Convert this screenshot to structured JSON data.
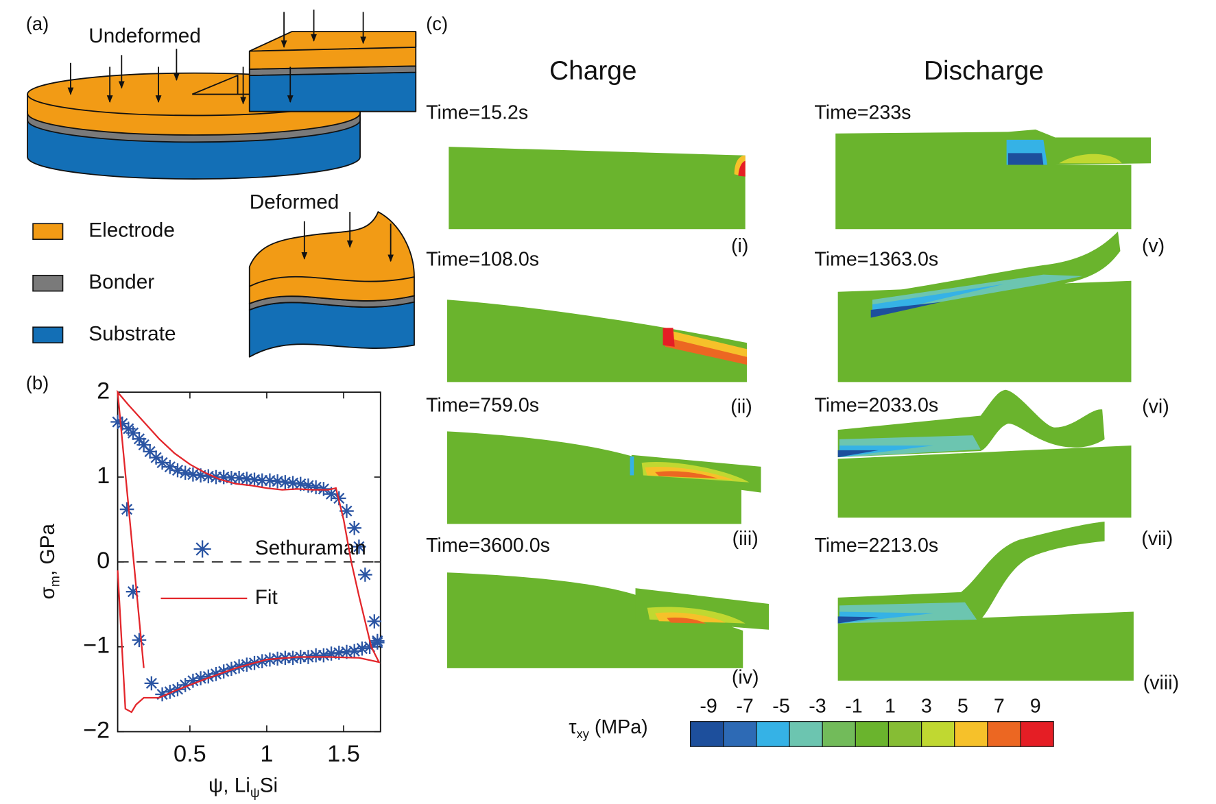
{
  "panel_a": {
    "label": "(a)",
    "undeformed": "Undeformed",
    "deformed": "Deformed",
    "legend": [
      {
        "name": "Electrode",
        "color": "#f29b15"
      },
      {
        "name": "Bonder",
        "color": "#7a7a7a"
      },
      {
        "name": "Substrate",
        "color": "#136fb6"
      }
    ]
  },
  "chart_data": {
    "type": "scatter",
    "label": "(b)",
    "ylabel": {
      "symbol": "σ",
      "sub": "m",
      "rest": ", GPa"
    },
    "xlabel": {
      "symbol": "ψ, Li",
      "sub": "ψ",
      "rest": "Si"
    },
    "xlim": [
      0.03,
      1.74
    ],
    "ylim": [
      -2,
      2
    ],
    "xticks": [
      0.5,
      1,
      1.5
    ],
    "yticks": [
      {
        "value": -2,
        "label": "−2"
      },
      {
        "value": -1,
        "label": "−1"
      },
      0,
      1,
      2
    ],
    "hline": 0,
    "series": [
      {
        "name": "Sethuraman",
        "color": "#2b55a3",
        "marker": "*",
        "x": [
          0.03,
          0.06,
          0.1,
          0.13,
          0.17,
          0.2,
          0.24,
          0.28,
          0.32,
          0.37,
          0.42,
          0.47,
          0.52,
          0.57,
          0.62,
          0.67,
          0.72,
          0.77,
          0.82,
          0.87,
          0.92,
          0.97,
          1.02,
          1.07,
          1.12,
          1.17,
          1.22,
          1.27,
          1.32,
          1.37,
          1.42,
          1.47,
          1.52,
          1.57,
          1.6,
          1.64,
          1.7,
          1.72,
          1.72,
          1.67,
          1.62,
          1.57,
          1.52,
          1.47,
          1.42,
          1.37,
          1.32,
          1.27,
          1.22,
          1.17,
          1.12,
          1.07,
          1.02,
          0.97,
          0.92,
          0.87,
          0.82,
          0.77,
          0.72,
          0.67,
          0.62,
          0.57,
          0.52,
          0.47,
          0.42,
          0.37,
          0.32,
          0.25,
          0.17,
          0.13,
          0.09
        ],
        "values": [
          1.65,
          1.63,
          1.57,
          1.52,
          1.45,
          1.38,
          1.3,
          1.23,
          1.17,
          1.12,
          1.08,
          1.05,
          1.03,
          1.02,
          1.01,
          1.0,
          1.0,
          0.99,
          0.99,
          0.98,
          0.97,
          0.96,
          0.96,
          0.95,
          0.94,
          0.93,
          0.92,
          0.9,
          0.88,
          0.86,
          0.8,
          0.75,
          0.6,
          0.4,
          0.18,
          -0.15,
          -0.7,
          -0.95,
          -0.93,
          -1.0,
          -1.02,
          -1.05,
          -1.06,
          -1.07,
          -1.08,
          -1.1,
          -1.1,
          -1.12,
          -1.12,
          -1.13,
          -1.13,
          -1.14,
          -1.15,
          -1.17,
          -1.19,
          -1.21,
          -1.23,
          -1.26,
          -1.29,
          -1.32,
          -1.35,
          -1.37,
          -1.4,
          -1.45,
          -1.5,
          -1.53,
          -1.56,
          -1.43,
          -0.92,
          -0.35,
          0.62
        ]
      },
      {
        "name": "Fit",
        "color": "#e3262b",
        "x": [
          0.03,
          0.08,
          0.12,
          0.15,
          0.2,
          0.3,
          0.4,
          0.6,
          0.8,
          1.0,
          1.2,
          1.4,
          1.6,
          1.73,
          1.68,
          1.6,
          1.55,
          1.5,
          1.45,
          1.4,
          1.3,
          1.2,
          1.1,
          1.0,
          0.9,
          0.8,
          0.7,
          0.6,
          0.5,
          0.4,
          0.3,
          0.2,
          0.1,
          0.03,
          0.2
        ],
        "values": [
          -0.1,
          -1.73,
          -1.77,
          -1.68,
          -1.6,
          -1.6,
          -1.52,
          -1.38,
          -1.25,
          -1.15,
          -1.12,
          -1.12,
          -1.13,
          -1.18,
          -1.0,
          -0.4,
          0.0,
          0.5,
          0.87,
          0.85,
          0.85,
          0.86,
          0.85,
          0.87,
          0.9,
          0.92,
          0.97,
          1.05,
          1.15,
          1.28,
          1.45,
          1.65,
          1.85,
          2.0,
          -1.25
        ]
      }
    ]
  },
  "panel_c": {
    "label": "(c)",
    "columns": [
      "Charge",
      "Discharge"
    ],
    "frames": [
      {
        "time": "Time=15.2s",
        "label": "(i)"
      },
      {
        "time": "Time=108.0s",
        "label": "(ii)"
      },
      {
        "time": "Time=759.0s",
        "label": "(iii)"
      },
      {
        "time": "Time=3600.0s",
        "label": "(iv)"
      },
      {
        "time": "Time=233s",
        "label": "(v)"
      },
      {
        "time": "Time=1363.0s",
        "label": "(vi)"
      },
      {
        "time": "Time=2033.0s",
        "label": "(vii)"
      },
      {
        "time": "Time=2213.0s",
        "label": "(viii)"
      }
    ],
    "colorbar": {
      "symbol": "τ",
      "sub": "xy",
      "unit": " (MPa)",
      "ticks": [
        -9,
        -7,
        -5,
        -3,
        -1,
        1,
        3,
        5,
        7,
        9
      ],
      "colors": [
        "#1d4f9c",
        "#2d6ab5",
        "#35b2e6",
        "#6cc5b0",
        "#72bb5a",
        "#6ab42d",
        "#86bd34",
        "#c0d831",
        "#f6c12a",
        "#ec6722",
        "#e51e25"
      ]
    }
  }
}
